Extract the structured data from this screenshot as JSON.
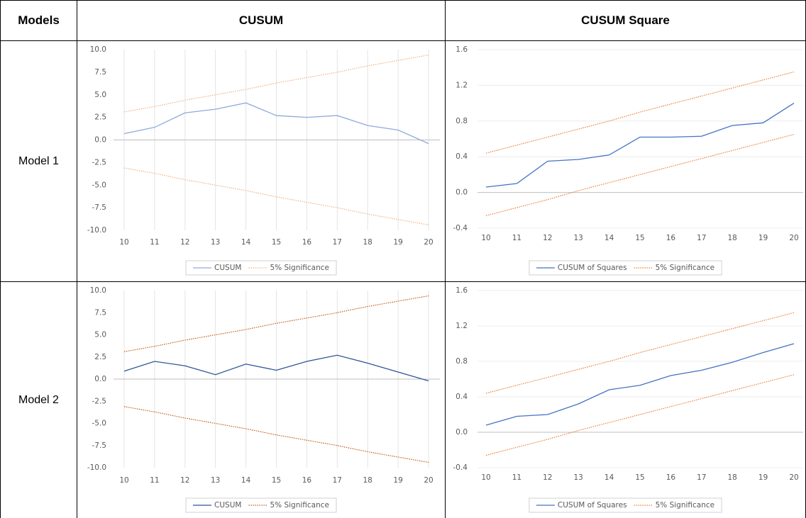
{
  "table": {
    "header": [
      "Models",
      "CUSUM",
      "CUSUM Square"
    ],
    "rows": [
      "Model 1",
      "Model 2"
    ]
  },
  "chart_data": [
    {
      "type": "line",
      "x": [
        10,
        11,
        12,
        13,
        14,
        15,
        16,
        17,
        18,
        19,
        20
      ],
      "xlim": [
        10,
        20
      ],
      "xticks": [
        10,
        11,
        12,
        13,
        14,
        15,
        16,
        17,
        18,
        19,
        20
      ],
      "ylim": [
        -10,
        10
      ],
      "yticks": [
        {
          "value": 10,
          "label": "10.0"
        },
        7.5,
        {
          "value": 5,
          "label": "5.0"
        },
        2.5,
        {
          "value": 0,
          "label": "0.0"
        },
        -2.5,
        {
          "value": -5,
          "label": "-5.0"
        },
        -7.5,
        {
          "value": -10,
          "label": "-10.0"
        }
      ],
      "grid": "x",
      "series": [
        {
          "name": "CUSUM",
          "color": "#8faadc",
          "style": "solid",
          "values": [
            0.7,
            1.4,
            3.0,
            3.4,
            4.1,
            2.7,
            2.5,
            2.7,
            1.6,
            1.1,
            -0.4
          ]
        },
        {
          "name": "5% Significance",
          "color": "#f4b183",
          "style": "dotted",
          "values": [
            3.1,
            3.7,
            4.4,
            5.0,
            5.6,
            6.3,
            6.9,
            7.5,
            8.2,
            8.8,
            9.4
          ],
          "lower": [
            -3.1,
            -3.7,
            -4.4,
            -5.0,
            -5.6,
            -6.3,
            -6.9,
            -7.5,
            -8.2,
            -8.8,
            -9.4
          ]
        }
      ]
    },
    {
      "type": "line",
      "x": [
        10,
        11,
        12,
        13,
        14,
        15,
        16,
        17,
        18,
        19,
        20
      ],
      "xlim": [
        10,
        20
      ],
      "xticks": [
        10,
        11,
        12,
        13,
        14,
        15,
        16,
        17,
        18,
        19,
        20
      ],
      "ylim": [
        -0.4,
        1.6
      ],
      "yticks": [
        1.6,
        1.2,
        0.8,
        0.4,
        {
          "value": 0,
          "label": "0.0"
        },
        -0.4
      ],
      "grid": "y",
      "series": [
        {
          "name": "CUSUM of Squares",
          "color": "#4472c4",
          "style": "solid",
          "values": [
            0.06,
            0.1,
            0.35,
            0.37,
            0.42,
            0.62,
            0.62,
            0.63,
            0.75,
            0.78,
            1.0
          ]
        },
        {
          "name": "5% Significance",
          "color": "#ed7d31",
          "style": "dotted",
          "values": [
            0.44,
            0.53,
            0.62,
            0.71,
            0.8,
            0.9,
            0.99,
            1.08,
            1.17,
            1.26,
            1.35
          ],
          "lower": [
            -0.26,
            -0.17,
            -0.08,
            0.02,
            0.11,
            0.2,
            0.29,
            0.38,
            0.47,
            0.56,
            0.65
          ]
        }
      ]
    },
    {
      "type": "line",
      "x": [
        10,
        11,
        12,
        13,
        14,
        15,
        16,
        17,
        18,
        19,
        20
      ],
      "xlim": [
        10,
        20
      ],
      "xticks": [
        10,
        11,
        12,
        13,
        14,
        15,
        16,
        17,
        18,
        19,
        20
      ],
      "ylim": [
        -10,
        10
      ],
      "yticks": [
        {
          "value": 10,
          "label": "10.0"
        },
        7.5,
        {
          "value": 5,
          "label": "5.0"
        },
        2.5,
        {
          "value": 0,
          "label": "0.0"
        },
        -2.5,
        {
          "value": -5,
          "label": "-5.0"
        },
        -7.5,
        {
          "value": -10,
          "label": "-10.0"
        }
      ],
      "grid": "x",
      "series": [
        {
          "name": "CUSUM",
          "color": "#2f5597",
          "style": "solid",
          "values": [
            0.9,
            2.0,
            1.5,
            0.5,
            1.7,
            1.0,
            2.0,
            2.7,
            1.8,
            0.8,
            -0.2
          ]
        },
        {
          "name": "5% Significance",
          "color": "#c55a11",
          "style": "dotted",
          "values": [
            3.1,
            3.7,
            4.4,
            5.0,
            5.6,
            6.3,
            6.9,
            7.5,
            8.2,
            8.8,
            9.4
          ],
          "lower": [
            -3.1,
            -3.7,
            -4.4,
            -5.0,
            -5.6,
            -6.3,
            -6.9,
            -7.5,
            -8.2,
            -8.8,
            -9.4
          ]
        }
      ]
    },
    {
      "type": "line",
      "x": [
        10,
        11,
        12,
        13,
        14,
        15,
        16,
        17,
        18,
        19,
        20
      ],
      "xlim": [
        10,
        20
      ],
      "xticks": [
        10,
        11,
        12,
        13,
        14,
        15,
        16,
        17,
        18,
        19,
        20
      ],
      "ylim": [
        -0.4,
        1.6
      ],
      "yticks": [
        1.6,
        1.2,
        0.8,
        0.4,
        {
          "value": 0,
          "label": "0.0"
        },
        -0.4
      ],
      "grid": "y",
      "series": [
        {
          "name": "CUSUM of Squares",
          "color": "#4472c4",
          "style": "solid",
          "values": [
            0.08,
            0.18,
            0.2,
            0.32,
            0.48,
            0.53,
            0.64,
            0.7,
            0.79,
            0.9,
            1.0
          ]
        },
        {
          "name": "5% Significance",
          "color": "#ed7d31",
          "style": "dotted",
          "values": [
            0.44,
            0.53,
            0.62,
            0.71,
            0.8,
            0.9,
            0.99,
            1.08,
            1.17,
            1.26,
            1.35
          ],
          "lower": [
            -0.26,
            -0.17,
            -0.08,
            0.02,
            0.11,
            0.2,
            0.29,
            0.38,
            0.47,
            0.56,
            0.65
          ]
        }
      ]
    }
  ]
}
